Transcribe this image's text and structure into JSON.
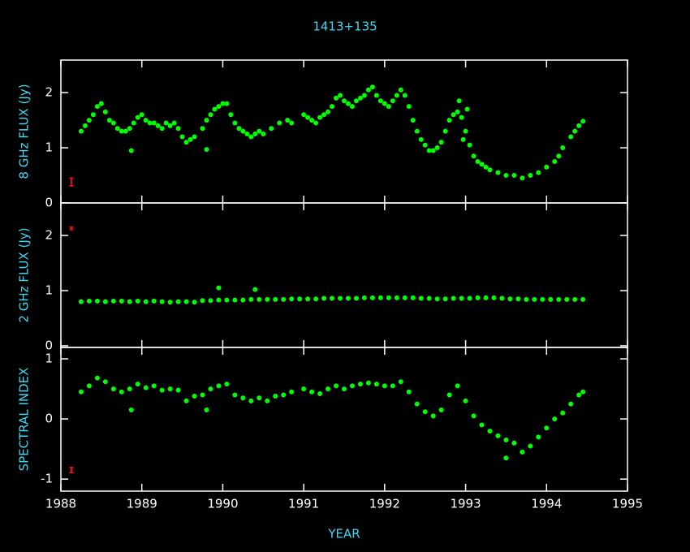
{
  "chart_data": [
    {
      "type": "scatter",
      "title": "1413+135",
      "ylabel": "8 GHz FLUX (Jy)",
      "color": "#00ff00",
      "ylim": [
        0,
        2.59
      ],
      "yticks": [
        0,
        1,
        2
      ],
      "x": [
        1988.25,
        1988.3,
        1988.35,
        1988.4,
        1988.45,
        1988.5,
        1988.55,
        1988.6,
        1988.65,
        1988.7,
        1988.75,
        1988.8,
        1988.85,
        1988.9,
        1988.95,
        1989.0,
        1989.05,
        1989.1,
        1989.15,
        1989.2,
        1989.25,
        1989.3,
        1989.35,
        1989.4,
        1989.45,
        1989.5,
        1989.55,
        1989.6,
        1989.65,
        1989.75,
        1989.8,
        1989.85,
        1989.9,
        1989.95,
        1990.0,
        1990.05,
        1990.1,
        1990.15,
        1990.2,
        1990.25,
        1990.3,
        1990.35,
        1990.4,
        1990.45,
        1990.5,
        1990.6,
        1990.7,
        1990.8,
        1990.85,
        1991.0,
        1991.05,
        1991.1,
        1991.15,
        1991.2,
        1991.25,
        1991.3,
        1991.35,
        1991.4,
        1991.45,
        1991.5,
        1991.55,
        1991.6,
        1991.65,
        1991.7,
        1991.75,
        1991.8,
        1991.85,
        1991.9,
        1991.95,
        1992.0,
        1992.05,
        1992.1,
        1992.15,
        1992.2,
        1992.25,
        1992.3,
        1992.35,
        1992.4,
        1992.45,
        1992.5,
        1992.55,
        1992.6,
        1992.65,
        1992.7,
        1992.75,
        1992.8,
        1992.85,
        1992.9,
        1992.95,
        1993.0,
        1993.05,
        1993.1,
        1993.15,
        1993.2,
        1993.25,
        1993.3,
        1993.4,
        1993.5,
        1993.6,
        1993.7,
        1993.8,
        1993.9,
        1994.0,
        1994.1,
        1994.15,
        1994.2,
        1994.3,
        1994.35,
        1994.4,
        1994.45,
        1988.87,
        1989.8,
        1992.92,
        1992.97,
        1993.02
      ],
      "values": [
        1.3,
        1.4,
        1.5,
        1.6,
        1.75,
        1.8,
        1.65,
        1.5,
        1.45,
        1.35,
        1.3,
        1.3,
        1.35,
        1.45,
        1.55,
        1.6,
        1.5,
        1.45,
        1.45,
        1.4,
        1.35,
        1.45,
        1.4,
        1.45,
        1.35,
        1.2,
        1.1,
        1.15,
        1.2,
        1.35,
        1.5,
        1.6,
        1.7,
        1.75,
        1.8,
        1.8,
        1.6,
        1.45,
        1.35,
        1.3,
        1.25,
        1.2,
        1.25,
        1.3,
        1.25,
        1.35,
        1.45,
        1.5,
        1.45,
        1.6,
        1.55,
        1.5,
        1.45,
        1.55,
        1.6,
        1.65,
        1.75,
        1.9,
        1.95,
        1.85,
        1.8,
        1.75,
        1.85,
        1.9,
        1.95,
        2.05,
        2.1,
        1.95,
        1.85,
        1.8,
        1.75,
        1.85,
        1.95,
        2.05,
        1.95,
        1.75,
        1.5,
        1.3,
        1.15,
        1.05,
        0.95,
        0.95,
        1.0,
        1.1,
        1.3,
        1.5,
        1.6,
        1.65,
        1.55,
        1.3,
        1.05,
        0.85,
        0.75,
        0.7,
        0.65,
        0.6,
        0.55,
        0.5,
        0.5,
        0.45,
        0.5,
        0.55,
        0.65,
        0.75,
        0.85,
        1.0,
        1.2,
        1.3,
        1.4,
        1.48,
        0.95,
        0.97,
        1.85,
        1.15,
        1.7
      ],
      "error_bar": {
        "x": 1988.13,
        "value": 0.38,
        "error": 0.07
      }
    },
    {
      "type": "scatter",
      "ylabel": "2 GHz FLUX (Jy)",
      "color": "#00ff00",
      "ylim": [
        -0.03,
        2.59
      ],
      "yticks": [
        0,
        1,
        2
      ],
      "x": [
        1988.25,
        1988.35,
        1988.45,
        1988.55,
        1988.65,
        1988.75,
        1988.85,
        1988.95,
        1989.05,
        1989.15,
        1989.25,
        1989.35,
        1989.45,
        1989.55,
        1989.65,
        1989.75,
        1989.85,
        1989.95,
        1990.05,
        1990.15,
        1990.25,
        1990.35,
        1990.45,
        1990.55,
        1990.65,
        1990.75,
        1990.85,
        1990.95,
        1991.05,
        1991.15,
        1991.25,
        1991.35,
        1991.45,
        1991.55,
        1991.65,
        1991.75,
        1991.85,
        1991.95,
        1992.05,
        1992.15,
        1992.25,
        1992.35,
        1992.45,
        1992.55,
        1992.65,
        1992.75,
        1992.85,
        1992.95,
        1993.05,
        1993.15,
        1993.25,
        1993.35,
        1993.45,
        1993.55,
        1993.65,
        1993.75,
        1993.85,
        1993.95,
        1994.05,
        1994.15,
        1994.25,
        1994.35,
        1994.45,
        1989.95,
        1990.4
      ],
      "values": [
        0.8,
        0.81,
        0.81,
        0.8,
        0.81,
        0.81,
        0.8,
        0.81,
        0.8,
        0.81,
        0.8,
        0.79,
        0.8,
        0.8,
        0.79,
        0.82,
        0.82,
        0.83,
        0.83,
        0.83,
        0.83,
        0.84,
        0.84,
        0.84,
        0.84,
        0.84,
        0.85,
        0.85,
        0.85,
        0.85,
        0.86,
        0.86,
        0.86,
        0.86,
        0.86,
        0.87,
        0.87,
        0.87,
        0.87,
        0.87,
        0.87,
        0.87,
        0.86,
        0.86,
        0.85,
        0.85,
        0.86,
        0.86,
        0.86,
        0.87,
        0.87,
        0.87,
        0.86,
        0.85,
        0.85,
        0.84,
        0.84,
        0.84,
        0.84,
        0.84,
        0.84,
        0.84,
        0.84,
        1.05,
        1.02
      ],
      "error_bar": {
        "x": 1988.13,
        "value": 2.13,
        "error": 0.02
      }
    },
    {
      "type": "scatter",
      "ylabel": "SPECTRAL INDEX",
      "xlabel": "YEAR",
      "color": "#00ff00",
      "ylim": [
        -1.2,
        1.19
      ],
      "yticks": [
        -1,
        0,
        1
      ],
      "xlim": [
        1988,
        1995
      ],
      "xticks": [
        1988,
        1989,
        1990,
        1991,
        1992,
        1993,
        1994,
        1995
      ],
      "x": [
        1988.25,
        1988.35,
        1988.45,
        1988.55,
        1988.65,
        1988.75,
        1988.85,
        1988.95,
        1989.05,
        1989.15,
        1989.25,
        1989.35,
        1989.45,
        1989.55,
        1989.65,
        1989.75,
        1989.85,
        1989.95,
        1990.05,
        1990.15,
        1990.25,
        1990.35,
        1990.45,
        1990.55,
        1990.65,
        1990.75,
        1990.85,
        1991.0,
        1991.1,
        1991.2,
        1991.3,
        1991.4,
        1991.5,
        1991.6,
        1991.7,
        1991.8,
        1991.9,
        1992.0,
        1992.1,
        1992.2,
        1992.3,
        1992.4,
        1992.5,
        1992.6,
        1992.7,
        1992.8,
        1992.9,
        1993.0,
        1993.1,
        1993.2,
        1993.3,
        1993.4,
        1993.5,
        1993.6,
        1993.7,
        1993.8,
        1993.9,
        1994.0,
        1994.1,
        1994.2,
        1994.3,
        1994.4,
        1994.45,
        1988.87,
        1989.8,
        1993.5
      ],
      "values": [
        0.45,
        0.55,
        0.68,
        0.62,
        0.5,
        0.45,
        0.5,
        0.58,
        0.52,
        0.55,
        0.48,
        0.5,
        0.48,
        0.3,
        0.38,
        0.4,
        0.5,
        0.55,
        0.58,
        0.4,
        0.35,
        0.3,
        0.35,
        0.3,
        0.38,
        0.4,
        0.45,
        0.5,
        0.45,
        0.42,
        0.5,
        0.55,
        0.5,
        0.55,
        0.58,
        0.6,
        0.58,
        0.55,
        0.55,
        0.62,
        0.45,
        0.25,
        0.12,
        0.05,
        0.15,
        0.4,
        0.55,
        0.3,
        0.05,
        -0.1,
        -0.2,
        -0.28,
        -0.35,
        -0.4,
        -0.55,
        -0.45,
        -0.3,
        -0.15,
        0.0,
        0.1,
        0.25,
        0.4,
        0.45,
        0.15,
        0.15,
        -0.65
      ],
      "error_bar": {
        "x": 1988.13,
        "value": -0.85,
        "error": 0.04
      }
    }
  ]
}
